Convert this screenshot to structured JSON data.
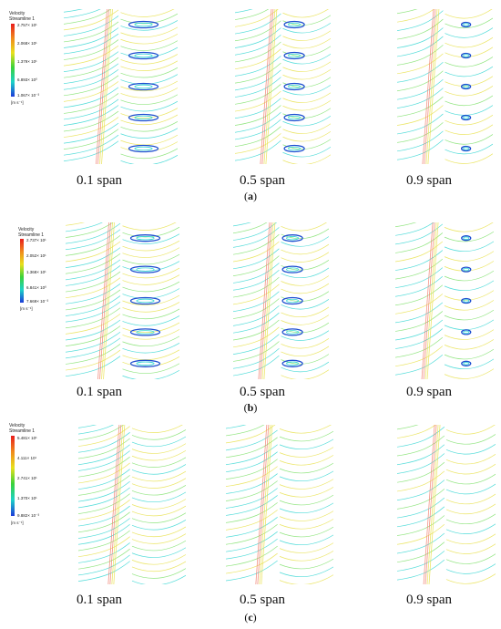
{
  "panels": [
    {
      "id": "a",
      "label": "a",
      "legend": {
        "title_line1": "Velocity",
        "title_line2": "Streamline 1",
        "ticks": [
          "2.757× 10¹",
          "2.068× 10¹",
          "1.379× 10¹",
          "6.893× 10⁰",
          "1.067× 10⁻³"
        ],
        "unit": "[m s⁻¹]"
      },
      "captions": [
        "0.1 span",
        "0.5 span",
        "0.9 span"
      ]
    },
    {
      "id": "b",
      "label": "b",
      "legend": {
        "title_line1": "Velocity",
        "title_line2": "Streamline 1",
        "ticks": [
          "2.737× 10¹",
          "2.052× 10¹",
          "1.368× 10¹",
          "6.841× 10⁰",
          "7.669× 10⁻³"
        ],
        "unit": "[m s⁻¹]"
      },
      "captions": [
        "0.1 span",
        "0.5 span",
        "0.9 span"
      ]
    },
    {
      "id": "c",
      "label": "c",
      "legend": {
        "title_line1": "Velocity",
        "title_line2": "Streamline 1",
        "ticks": [
          "5.481× 10¹",
          "4.111× 10¹",
          "2.741× 10¹",
          "1.370× 10¹",
          "9.882× 10⁻³"
        ],
        "unit": "[m s⁻¹]"
      },
      "captions": [
        "0.1 span",
        "0.5 span",
        "0.9 span"
      ]
    }
  ],
  "colors": {
    "cyan": "#34d6d2",
    "green": "#7ee06a",
    "yellow": "#e8e04a",
    "red": "#f07a6a",
    "blue": "#1d4fd0"
  }
}
